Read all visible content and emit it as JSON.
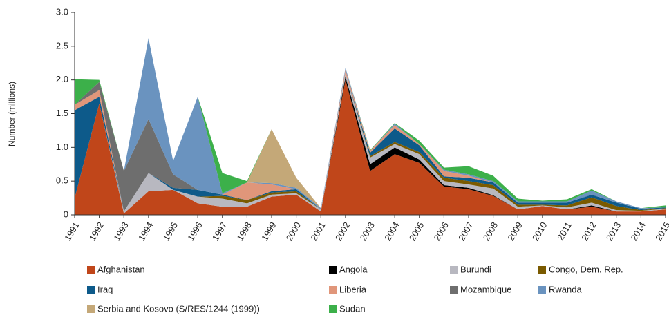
{
  "chart_data": {
    "type": "stacked_area",
    "y_label": "Number (millions)",
    "x": [
      1991,
      1992,
      1993,
      1994,
      1995,
      1996,
      1997,
      1998,
      1999,
      2000,
      2001,
      2002,
      2003,
      2004,
      2005,
      2006,
      2007,
      2008,
      2009,
      2010,
      2011,
      2012,
      2013,
      2014,
      2015
    ],
    "xlim": [
      1991,
      2015
    ],
    "ylim": [
      0,
      3
    ],
    "yticks": [
      0,
      0.5,
      {
        "value": 1,
        "label": "1.0"
      },
      1.5,
      {
        "value": 2,
        "label": "2.0"
      },
      2.5,
      {
        "value": 3,
        "label": "3.0"
      }
    ],
    "series": [
      {
        "name": "Afghanistan",
        "color": "#c0461a",
        "values": [
          0.25,
          1.65,
          0.02,
          0.35,
          0.37,
          0.17,
          0.12,
          0.12,
          0.27,
          0.3,
          0.05,
          2.0,
          0.65,
          0.9,
          0.77,
          0.42,
          0.38,
          0.28,
          0.08,
          0.13,
          0.08,
          0.12,
          0.05,
          0.05,
          0.08
        ]
      },
      {
        "name": "Angola",
        "color": "#000000",
        "values": [
          0,
          0,
          0,
          0,
          0,
          0,
          0,
          0,
          0,
          0,
          0,
          0.05,
          0.1,
          0.1,
          0.05,
          0.02,
          0.02,
          0.01,
          0,
          0,
          0,
          0.02,
          0,
          0,
          0
        ]
      },
      {
        "name": "Burundi",
        "color": "#b8b8c0",
        "values": [
          0,
          0,
          0.03,
          0.27,
          0,
          0.1,
          0.12,
          0.05,
          0.03,
          0.02,
          0.03,
          0.05,
          0.1,
          0.05,
          0.08,
          0.06,
          0.05,
          0.1,
          0.04,
          0.01,
          0.03,
          0.04,
          0.02,
          0.01,
          0.01
        ]
      },
      {
        "name": "Congo, Dem. Rep.",
        "color": "#7a5a00",
        "values": [
          0,
          0,
          0,
          0,
          0,
          0,
          0.04,
          0.05,
          0.03,
          0.03,
          0,
          0,
          0.02,
          0.03,
          0.03,
          0.05,
          0.05,
          0.05,
          0.03,
          0.01,
          0.03,
          0.08,
          0.06,
          0.01,
          0.01
        ]
      },
      {
        "name": "Iraq",
        "color": "#0d5a8a",
        "values": [
          1.3,
          0.1,
          0,
          0,
          0.03,
          0.1,
          0.02,
          0,
          0.02,
          0.03,
          0,
          0,
          0.05,
          0.2,
          0.1,
          0.02,
          0.05,
          0.04,
          0.03,
          0.03,
          0.04,
          0.04,
          0.05,
          0.02,
          0.01
        ]
      },
      {
        "name": "Liberia",
        "color": "#e0967a",
        "values": [
          0.08,
          0.1,
          0,
          0,
          0,
          0,
          0,
          0.26,
          0.1,
          0,
          0,
          0.05,
          0.03,
          0.05,
          0.02,
          0.08,
          0.03,
          0,
          0,
          0,
          0,
          0,
          0,
          0,
          0
        ]
      },
      {
        "name": "Mozambique",
        "color": "#6e6e6e",
        "values": [
          0,
          0.12,
          0.6,
          0.8,
          0.2,
          0,
          0,
          0,
          0,
          0,
          0,
          0,
          0,
          0,
          0,
          0,
          0,
          0,
          0,
          0,
          0,
          0,
          0,
          0,
          0
        ]
      },
      {
        "name": "Rwanda",
        "color": "#6a93bf",
        "values": [
          0,
          0,
          0,
          1.2,
          0.2,
          1.38,
          0.02,
          0,
          0.02,
          0.02,
          0.02,
          0.03,
          0,
          0.02,
          0,
          0.02,
          0.02,
          0.02,
          0.02,
          0.02,
          0.02,
          0.06,
          0.02,
          0.01,
          0
        ]
      },
      {
        "name": "Serbia and Kosovo (S/RES/1244 (1999))",
        "color": "#c4a878",
        "values": [
          0,
          0,
          0,
          0,
          0,
          0,
          0,
          0,
          0.8,
          0.15,
          0,
          0,
          0,
          0,
          0,
          0,
          0,
          0,
          0,
          0,
          0,
          0,
          0,
          0,
          0
        ]
      },
      {
        "name": "Sudan",
        "color": "#3cb04a",
        "values": [
          0.38,
          0.03,
          0,
          0,
          0,
          0,
          0.3,
          0.02,
          0,
          0,
          0,
          0,
          0.01,
          0.01,
          0.05,
          0.03,
          0.12,
          0.08,
          0.04,
          0.01,
          0.03,
          0.02,
          0,
          0,
          0.03
        ]
      }
    ]
  }
}
